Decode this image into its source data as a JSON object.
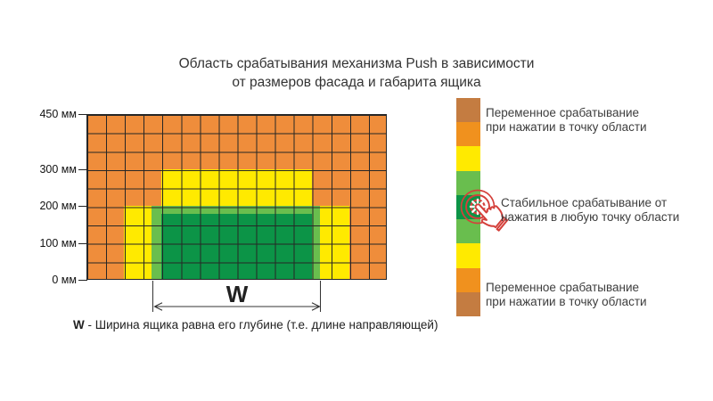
{
  "title": {
    "line1": "Область срабатывания механизма Push в зависимости",
    "line2": "от размеров фасада и габарита ящика"
  },
  "colors": {
    "orange": "#EF8D3B",
    "yellow": "#FFEA00",
    "light_green": "#69BE4E",
    "dark_green": "#0C9447",
    "legend_dark_orange": "#C47C41",
    "legend_orange": "#F0911E",
    "accent_red": "#D4403B"
  },
  "axis": {
    "unit": "мм",
    "ticks": [
      {
        "label": "450 мм",
        "mm": 450
      },
      {
        "label": "300 мм",
        "mm": 300
      },
      {
        "label": "200 мм",
        "mm": 200
      },
      {
        "label": "100 мм",
        "mm": 100
      },
      {
        "label": "0 мм",
        "mm": 0
      }
    ]
  },
  "grid": {
    "columns": 16,
    "rows": 9,
    "cell_mm": 50,
    "facade_height_mm": 450
  },
  "dimension": {
    "label": "W"
  },
  "caption": {
    "term": "W",
    "text": " - Ширина ящика равна его глубине (т.е. длине направляющей)"
  },
  "legend": {
    "segments": [
      "#C47C41",
      "#F0911E",
      "#FFEA00",
      "#69BE4E",
      "#0C9447",
      "#69BE4E",
      "#FFEA00",
      "#F0911E",
      "#C47C41"
    ],
    "items": [
      {
        "line1": "Переменное срабатывание",
        "line2": "при нажатии в точку области"
      },
      {
        "line1": "Стабильное срабатывание от",
        "line2": "нажатия в любую точку области"
      },
      {
        "line1": "Переменное срабатывание",
        "line2": "при нажатии в точку области"
      }
    ]
  }
}
